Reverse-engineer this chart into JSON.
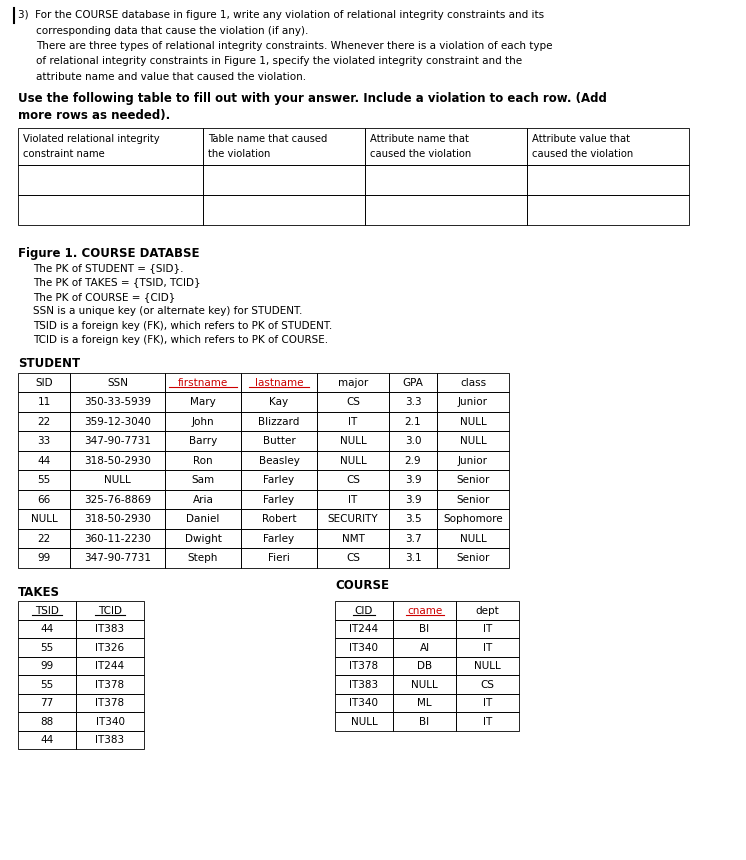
{
  "bg_color": "#ffffff",
  "intro_lines": [
    [
      "3)  ",
      false,
      "For the COURSE database in figure 1, write any violation of relational integrity constraints and its"
    ],
    [
      "",
      false,
      "     corresponding data that cause the violation (if any)."
    ],
    [
      "",
      false,
      "     There are three types of relational integrity constraints. Whenever there is a violation of each type"
    ],
    [
      "",
      false,
      "     of relational integrity constraints in Figure 1, specify the violated integrity constraint and the"
    ],
    [
      "",
      false,
      "     attribute name and value that caused the violation."
    ]
  ],
  "bold_line1": "Use the following table to fill out with your answer. Include a violation to each row. (Add",
  "bold_line2": "more rows as needed).",
  "answer_headers": [
    "Violated relational integrity\nconstraint name",
    "Table name that caused\nthe violation",
    "Attribute name that\ncaused the violation",
    "Attribute value that\ncaused the violation"
  ],
  "figure_label": "Figure 1. COURSE DATABSE",
  "figure_notes": [
    "    The PK of STUDENT = {SID}.",
    "    The PK of TAKES = {TSID, TCID}",
    "    The PK of COURSE = {CID}",
    "    SSN is a unique key (or alternate key) for STUDENT.",
    "    TSID is a foreign key (FK), which refers to PK of STUDENT.",
    "    TCID is a foreign key (FK), which refers to PK of COURSE."
  ],
  "student_label": "STUDENT",
  "student_headers": [
    "SID",
    "SSN",
    "firstname",
    "lastname",
    "major",
    "GPA",
    "class"
  ],
  "student_header_ul": [
    false,
    false,
    true,
    true,
    false,
    false,
    false
  ],
  "student_header_color": [
    "#000000",
    "#000000",
    "#cc0000",
    "#cc0000",
    "#000000",
    "#000000",
    "#000000"
  ],
  "student_rows": [
    [
      "11",
      "350-33-5939",
      "Mary",
      "Kay",
      "CS",
      "3.3",
      "Junior"
    ],
    [
      "22",
      "359-12-3040",
      "John",
      "Blizzard",
      "IT",
      "2.1",
      "NULL"
    ],
    [
      "33",
      "347-90-7731",
      "Barry",
      "Butter",
      "NULL",
      "3.0",
      "NULL"
    ],
    [
      "44",
      "318-50-2930",
      "Ron",
      "Beasley",
      "NULL",
      "2.9",
      "Junior"
    ],
    [
      "55",
      "NULL",
      "Sam",
      "Farley",
      "CS",
      "3.9",
      "Senior"
    ],
    [
      "66",
      "325-76-8869",
      "Aria",
      "Farley",
      "IT",
      "3.9",
      "Senior"
    ],
    [
      "NULL",
      "318-50-2930",
      "Daniel",
      "Robert",
      "SECURITY",
      "3.5",
      "Sophomore"
    ],
    [
      "22",
      "360-11-2230",
      "Dwight",
      "Farley",
      "NMT",
      "3.7",
      "NULL"
    ],
    [
      "99",
      "347-90-7731",
      "Steph",
      "Fieri",
      "CS",
      "3.1",
      "Senior"
    ]
  ],
  "takes_label": "TAKES",
  "takes_headers": [
    "TSID",
    "TCID"
  ],
  "takes_header_ul": [
    true,
    true
  ],
  "takes_rows": [
    [
      "44",
      "IT383"
    ],
    [
      "55",
      "IT326"
    ],
    [
      "99",
      "IT244"
    ],
    [
      "55",
      "IT378"
    ],
    [
      "77",
      "IT378"
    ],
    [
      "88",
      "IT340"
    ],
    [
      "44",
      "IT383"
    ]
  ],
  "course_label": "COURSE",
  "course_headers": [
    "CID",
    "cname",
    "dept"
  ],
  "course_header_ul": [
    true,
    true,
    false
  ],
  "course_header_color": [
    "#000000",
    "#cc0000",
    "#000000"
  ],
  "course_rows": [
    [
      "IT244",
      "BI",
      "IT"
    ],
    [
      "IT340",
      "AI",
      "IT"
    ],
    [
      "IT378",
      "DB",
      "NULL"
    ],
    [
      "IT383",
      "NULL",
      "CS"
    ],
    [
      "IT340",
      "ML",
      "IT"
    ],
    [
      "NULL",
      "BI",
      "IT"
    ]
  ]
}
